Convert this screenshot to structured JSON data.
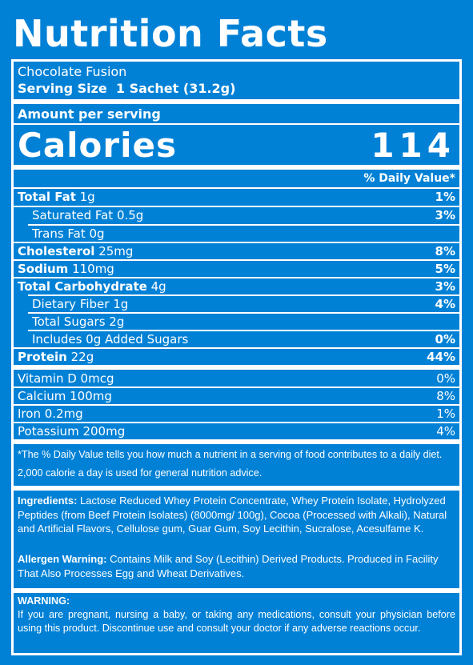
{
  "title": "Nutrition Facts",
  "product": "Chocolate Fusion",
  "serving_size": "Serving Size  1 Sachet (31.2g)",
  "amount_per_serving": "Amount per serving",
  "calories_label": "Calories",
  "calories_value": "114",
  "dv_header": "% Daily Value*",
  "nutrients": [
    {
      "name": "Total Fat",
      "amount": " 1g",
      "dv": "1%"
    },
    {
      "name": "Saturated Fat 0.5g",
      "amount": "",
      "dv": "3%"
    },
    {
      "name": "Trans Fat 0g",
      "amount": "",
      "dv": ""
    },
    {
      "name": "Cholesterol",
      "amount": " 25mg",
      "dv": "8%"
    },
    {
      "name": "Sodium",
      "amount": " 110mg",
      "dv": "5%"
    },
    {
      "name": "Total Carbohydrate",
      "amount": " 4g",
      "dv": "3%"
    },
    {
      "name": "Dietary Fiber 1g",
      "amount": "",
      "dv": "4%"
    },
    {
      "name": "Total Sugars 2g",
      "amount": "",
      "dv": ""
    },
    {
      "name": "Includes 0g Added Sugars",
      "amount": "",
      "dv": "0%"
    },
    {
      "name": "Protein",
      "amount": " 22g",
      "dv": "44%"
    }
  ],
  "vitamins": [
    {
      "label": "Vitamin D 0mcg",
      "dv": "0%"
    },
    {
      "label": "Calcium 100mg",
      "dv": "8%"
    },
    {
      "label": "Iron 0.2mg",
      "dv": "1%"
    },
    {
      "label": "Potassium 200mg",
      "dv": "4%"
    }
  ],
  "footnote": "*The % Daily Value tells you how much a nutrient in a serving of food contributes to a daily diet. 2,000 calorie a day is used for general nutrition advice.",
  "ingredients_label": "Ingredients:",
  "ingredients_text": " Lactose Reduced Whey Protein Concentrate, Whey Protein Isolate, Hydrolyzed Peptides (from Beef Protein Isolates) (8000mg/ 100g), Cocoa (Processed with Alkali), Natural and Artificial Flavors, Cellulose gum, Guar Gum, Soy Lecithin, Sucralose, Acesulfame K.",
  "allergen_label": "Allergen Warning:",
  "allergen_text": " Contains Milk and Soy (Lecithin) Derived Products. Produced in Facility That Also Processes Egg and Wheat Derivatives.",
  "warning_label": "WARNING:",
  "warning_text": "If you are pregnant, nursing a baby, or taking any medications, consult your physician before using this product. Discontinue use and consult your doctor if any adverse reactions occur.",
  "colors": {
    "background": "#0081d6",
    "text": "#ffffff"
  }
}
